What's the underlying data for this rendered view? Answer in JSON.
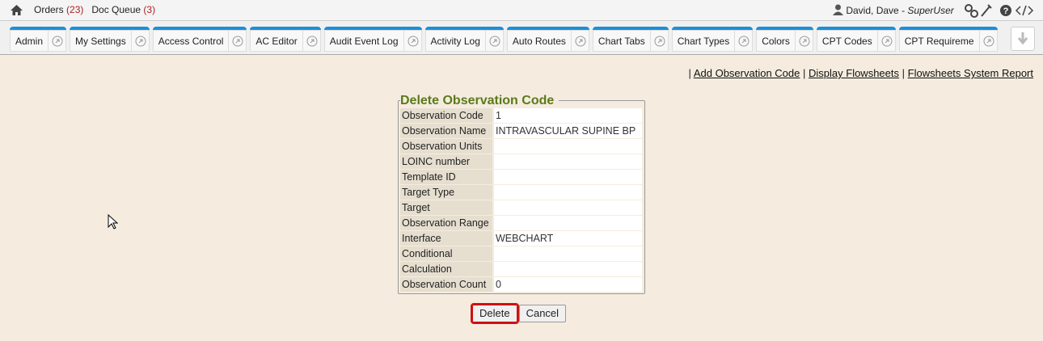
{
  "header": {
    "nav": [
      {
        "label": "Orders",
        "count": "(23)"
      },
      {
        "label": "Doc Queue",
        "count": "(3)"
      }
    ],
    "user": "David, Dave",
    "role_separator": "-",
    "role": "SuperUser"
  },
  "tabs": [
    "Admin",
    "My Settings",
    "Access Control",
    "AC Editor",
    "Audit Event Log",
    "Activity Log",
    "Auto Routes",
    "Chart Tabs",
    "Chart Types",
    "Colors",
    "CPT Codes",
    "CPT Requireme"
  ],
  "links": {
    "separator": "|",
    "items": [
      "Add Observation Code",
      "Display Flowsheets",
      "Flowsheets System Report"
    ]
  },
  "form": {
    "title": "Delete Observation Code",
    "rows": [
      [
        "Observation Code",
        "1"
      ],
      [
        "Observation Name",
        "INTRAVASCULAR SUPINE BP"
      ],
      [
        "Observation Units",
        ""
      ],
      [
        "LOINC number",
        ""
      ],
      [
        "Template ID",
        ""
      ],
      [
        "Target Type",
        ""
      ],
      [
        "Target",
        ""
      ],
      [
        "Observation Range",
        ""
      ],
      [
        "Interface",
        "WEBCHART"
      ],
      [
        "Conditional",
        ""
      ],
      [
        "Calculation",
        ""
      ],
      [
        "Observation Count",
        "0"
      ]
    ],
    "buttons": [
      "Delete",
      "Cancel"
    ]
  }
}
